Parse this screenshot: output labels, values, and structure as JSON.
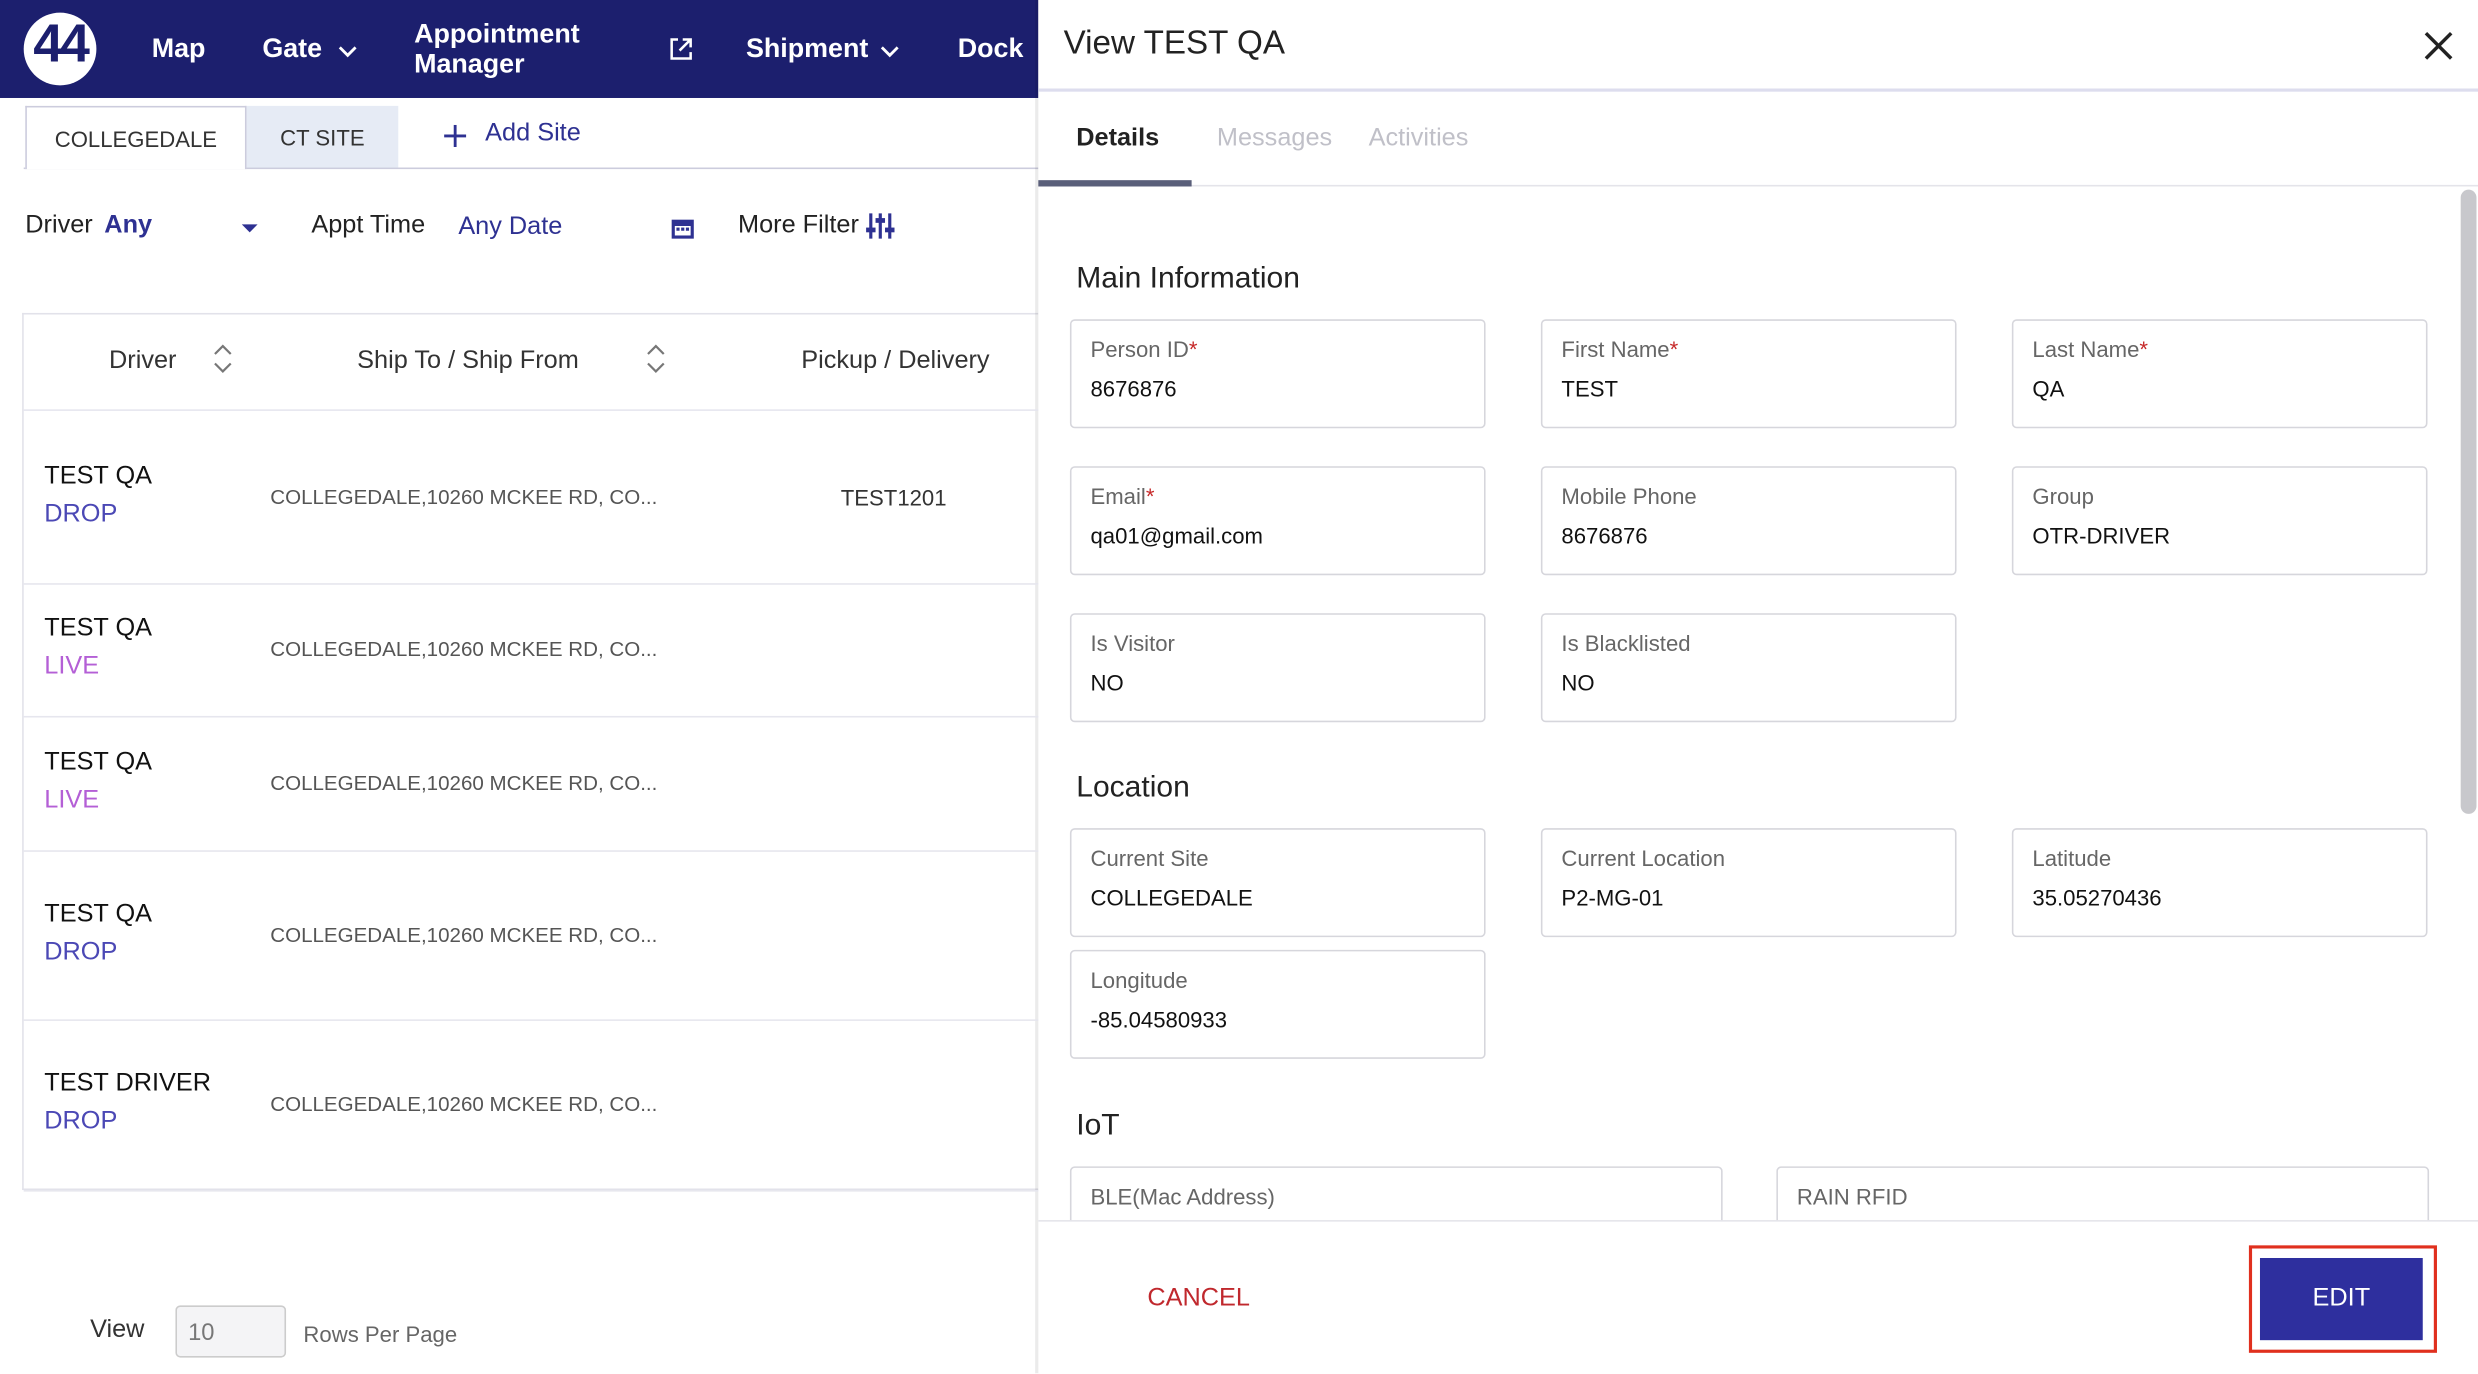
{
  "nav": {
    "logo": "44",
    "items": [
      "Map",
      "Gate",
      "Appointment Manager",
      "Shipment",
      "Dock"
    ]
  },
  "sites": {
    "tabs": [
      "COLLEGEDALE",
      "CT SITE"
    ],
    "add": "Add Site"
  },
  "filters": {
    "driver_label": "Driver",
    "driver_value": "Any",
    "appt_label": "Appt Time",
    "appt_value": "Any Date",
    "more": "More Filter"
  },
  "table": {
    "columns": [
      "Driver",
      "Ship To / Ship From",
      "Pickup / Delivery"
    ],
    "rows": [
      {
        "driver": "TEST QA",
        "type": "DROP",
        "ship": "COLLEGEDALE,10260 MCKEE RD, CO...",
        "pickup": "TEST1201"
      },
      {
        "driver": "TEST QA",
        "type": "LIVE",
        "ship": "COLLEGEDALE,10260 MCKEE RD, CO..."
      },
      {
        "driver": "TEST QA",
        "type": "LIVE",
        "ship": "COLLEGEDALE,10260 MCKEE RD, CO..."
      },
      {
        "driver": "TEST QA",
        "type": "DROP",
        "ship": "COLLEGEDALE,10260 MCKEE RD, CO..."
      },
      {
        "driver": "TEST DRIVER",
        "type": "DROP",
        "ship": "COLLEGEDALE,10260 MCKEE RD, CO..."
      }
    ]
  },
  "pagination": {
    "view": "View",
    "size": "10",
    "rows_per_page": "Rows Per Page"
  },
  "panel": {
    "title": "View TEST QA",
    "tabs": [
      "Details",
      "Messages",
      "Activities"
    ],
    "sections": [
      {
        "title": "Main Information",
        "fields": [
          {
            "label": "Person ID",
            "required_mark": "*",
            "value": "8676876"
          },
          {
            "label": "First Name",
            "required_mark": "*",
            "value": "TEST"
          },
          {
            "label": "Last Name",
            "required_mark": "*",
            "value": "QA"
          },
          {
            "label": "Email",
            "required_mark": "*",
            "value": "qa01@gmail.com"
          },
          {
            "label": "Mobile Phone",
            "value": "8676876"
          },
          {
            "label": "Group",
            "value": "OTR-DRIVER"
          },
          {
            "label": "Is Visitor",
            "value": "NO"
          },
          {
            "label": "Is Blacklisted",
            "value": "NO"
          }
        ]
      },
      {
        "title": "Location",
        "fields": [
          {
            "label": "Current Site",
            "value": "COLLEGEDALE"
          },
          {
            "label": "Current Location",
            "value": "P2-MG-01"
          },
          {
            "label": "Latitude",
            "value": "35.05270436"
          },
          {
            "label": "Longitude",
            "value": "-85.04580933"
          }
        ]
      },
      {
        "title": "IoT",
        "fields": [
          {
            "label": "BLE(Mac Address)"
          },
          {
            "label": "RAIN RFID"
          }
        ]
      }
    ],
    "cancel": "CANCEL",
    "edit": "EDIT"
  }
}
